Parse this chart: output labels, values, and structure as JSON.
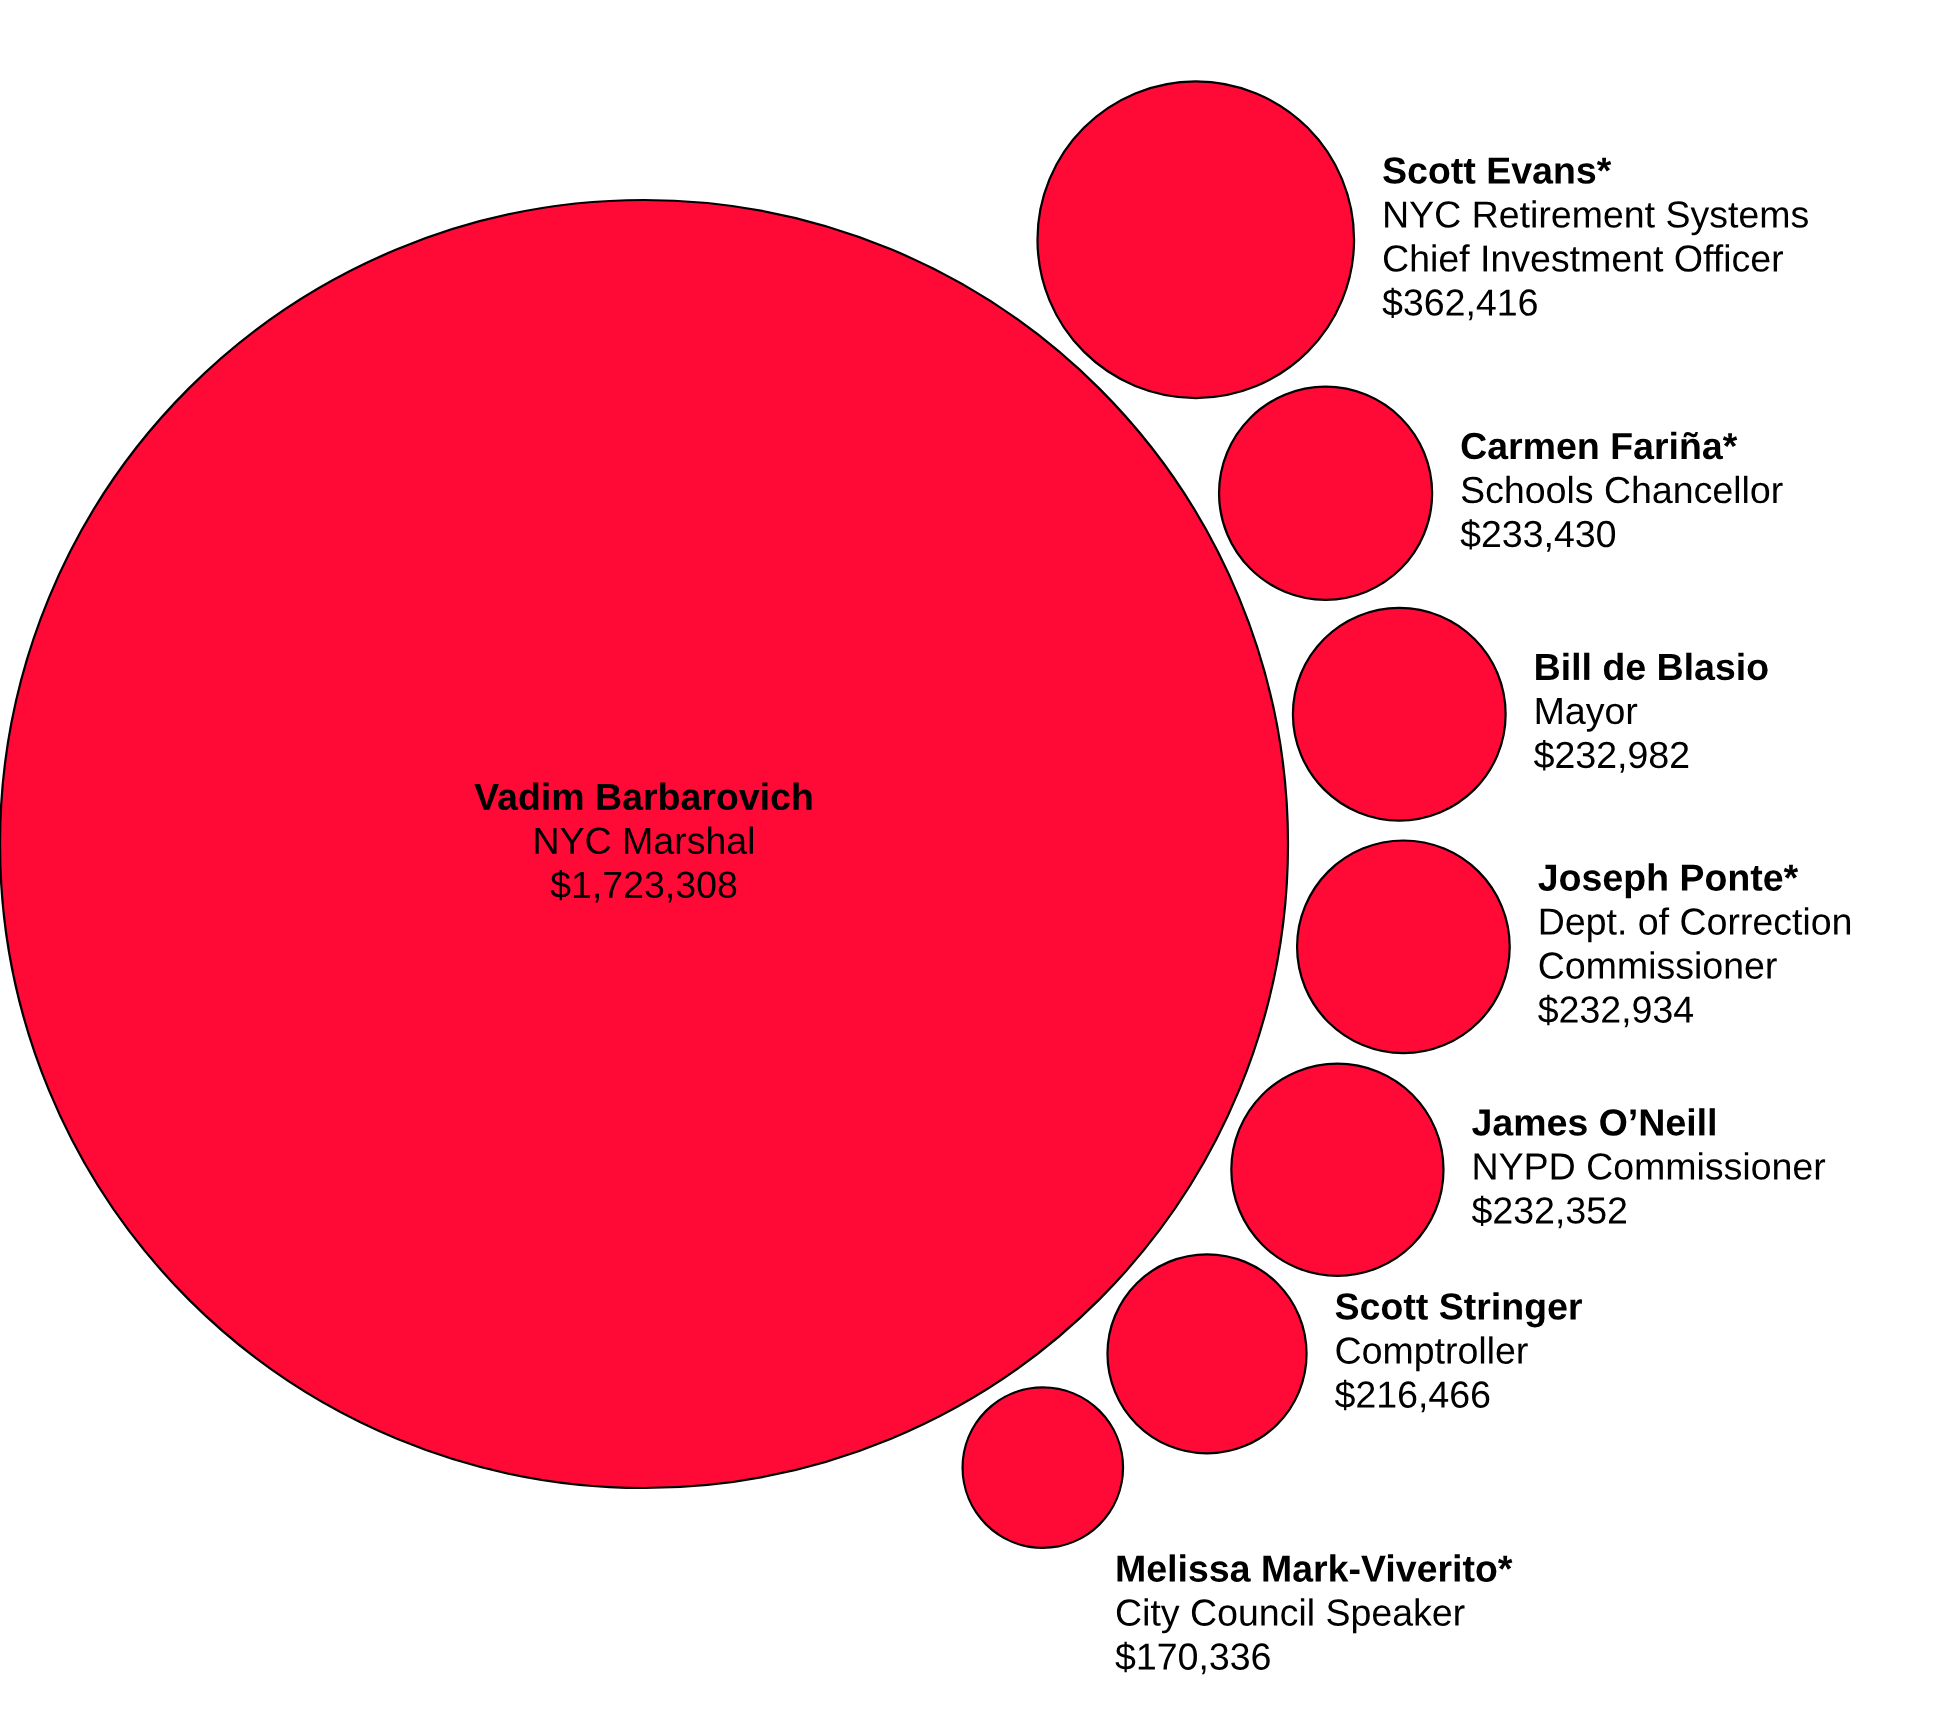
{
  "chart_data": {
    "type": "other",
    "categories": [
      "Vadim Barbarovich",
      "Scott Evans*",
      "Carmen Fariña*",
      "Bill de Blasio",
      "Joseph Ponte*",
      "James O’Neill",
      "Scott Stringer",
      "Melissa Mark-Viverito*"
    ],
    "annotations": [
      "NYC Marshal",
      "NYC Retirement Systems\nChief Investment Officer",
      "Schools Chancellor",
      "Mayor",
      "Dept. of Correction\nCommissioner",
      "NYPD Commissioner",
      "Comptroller",
      "City Council Speaker"
    ],
    "values": [
      1723308,
      362416,
      233430,
      232982,
      232934,
      232352,
      216466,
      170336
    ],
    "value_labels": [
      "$1,723,308",
      "$362,416",
      "$233,430",
      "$232,982",
      "$232,934",
      "$232,352",
      "$216,466",
      "$170,336"
    ],
    "color": "#ff0a37"
  }
}
